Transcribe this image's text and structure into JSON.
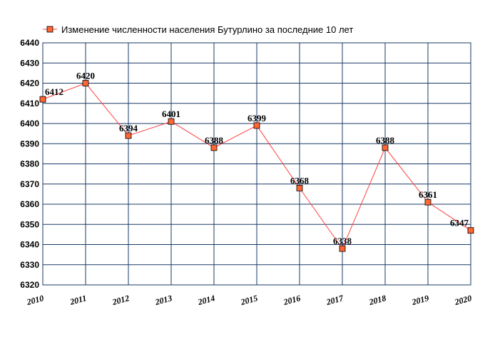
{
  "chart_data": {
    "type": "line",
    "title": "",
    "xlabel": "",
    "ylabel": "",
    "x": [
      "2010",
      "2011",
      "2012",
      "2013",
      "2014",
      "2015",
      "2016",
      "2017",
      "2018",
      "2019",
      "2020"
    ],
    "series": [
      {
        "name": "Изменение численности населения Бутурлино за последние 10 лет",
        "values": [
          6412,
          6420,
          6394,
          6401,
          6388,
          6399,
          6368,
          6338,
          6388,
          6361,
          6347
        ],
        "labels": [
          "6412",
          "6420",
          "6394",
          "6401",
          "6388",
          "6399",
          "6368",
          "6338",
          "6388",
          "6361",
          "6347"
        ]
      }
    ],
    "yticks": [
      "6320",
      "6330",
      "6340",
      "6350",
      "6360",
      "6370",
      "6380",
      "6390",
      "6400",
      "6410",
      "6420",
      "6430",
      "6440"
    ],
    "ylim": [
      6320,
      6440
    ],
    "grid": true,
    "legend_position": "top-left",
    "colors": {
      "line": "#ff4040",
      "marker_fill": "#ff6633",
      "marker_stroke": "#000000",
      "grid": "#1a3a66"
    }
  }
}
